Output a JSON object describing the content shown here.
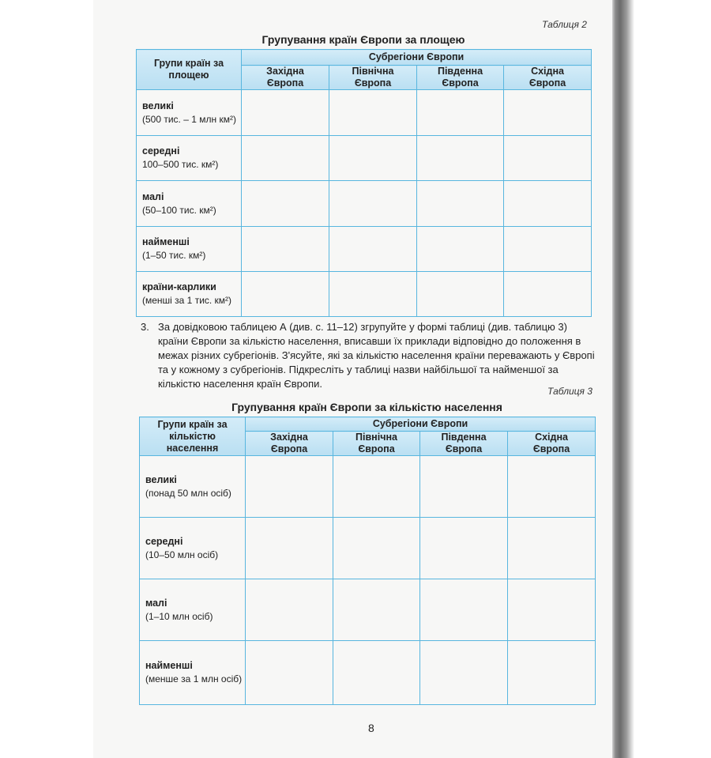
{
  "table2": {
    "caption": "Таблиця 2",
    "title": "Групування країн Європи за площею",
    "row_header": "Групи країн за площею",
    "group_header": "Субрегіони Європи",
    "columns": [
      "Західна Європа",
      "Північна Європа",
      "Південна Європа",
      "Східна Європа"
    ],
    "rows": [
      {
        "name": "великі",
        "detail": "(500 тис. – 1 млн км²)"
      },
      {
        "name": "середні",
        "detail": "100–500 тис. км²)"
      },
      {
        "name": "малі",
        "detail": "(50–100 тис. км²)"
      },
      {
        "name": "найменші",
        "detail": "(1–50 тис. км²)"
      },
      {
        "name": "країни-карлики",
        "detail": "(менші за 1 тис. км²)"
      }
    ]
  },
  "task": {
    "number": "3.",
    "text": "За довідковою таблицею А (див. с. 11–12) згрупуйте у формі таблиці (див. таблицю 3) країни Європи за кількістю населення, вписавши їх приклади відповідно до положення в межах різних субрегіонів. З'ясуйте, які за кількістю населення країни переважають у Європі та у кожному з субрегіонів. Підкресліть у таблиці назви найбільшої та найменшої за кількістю населення країн Європи."
  },
  "table3": {
    "caption": "Таблиця 3",
    "title": "Групування країн Європи за кількістю населення",
    "row_header": "Групи країн за кількістю населення",
    "group_header": "Субрегіони Європи",
    "columns": [
      "Західна Європа",
      "Північна Європа",
      "Південна Європа",
      "Східна Європа"
    ],
    "rows": [
      {
        "name": "великі",
        "detail": "(понад 50 млн осіб)"
      },
      {
        "name": "середні",
        "detail": "(10–50 млн осіб)"
      },
      {
        "name": "малі",
        "detail": "(1–10 млн осіб)"
      },
      {
        "name": "найменші",
        "detail": "(менше за 1 млн осіб)"
      }
    ]
  },
  "page_number": "8",
  "colors": {
    "table_border": "#58b6df",
    "header_fill": "#c6e6f5"
  }
}
